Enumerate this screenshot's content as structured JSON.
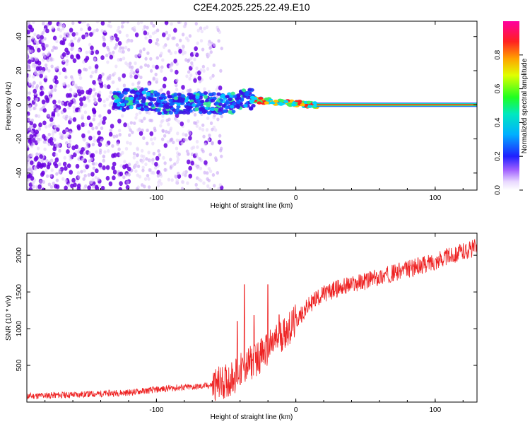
{
  "title": "C2E4.2025.225.22.49.E10",
  "colors": {
    "snr_line": "#ee2222",
    "waterfall_low": "#7700dd",
    "waterfall_mid": "#00c8ff",
    "waterfall_high": "#ff2020"
  },
  "chart_data": [
    {
      "type": "heatmap",
      "title": "C2E4.2025.225.22.49.E10",
      "xlabel": "Height of straight line (km)",
      "ylabel": "Frequency (Hz)",
      "xlim": [
        -193,
        130
      ],
      "ylim": [
        -50,
        49
      ],
      "xticks": [
        -100,
        0,
        100
      ],
      "xtick_labels": [
        "-100",
        "0",
        "100"
      ],
      "yticks": [
        -40,
        -20,
        0,
        20,
        40
      ],
      "ytick_labels": [
        "-40",
        "-20",
        "0",
        "20",
        "40"
      ],
      "grid": false,
      "colorbar": {
        "label": "Normalized spectral amplitude",
        "range": [
          0,
          1
        ],
        "ticks": [
          0.0,
          0.2,
          0.4,
          0.6,
          0.8
        ],
        "tick_labels": [
          "0.0",
          "0.2",
          "0.4",
          "0.6",
          "0.8"
        ],
        "colormap": "rainbow (white-violet-blue-cyan-green-yellow-red-magenta)"
      },
      "features": [
        {
          "region": "x from -193 to -60 km, all frequencies",
          "description": "scattered violet speckle noise (amplitude 0.0-0.2)"
        },
        {
          "region": "x from -130 to -30 km, frequency -8 to +8 Hz",
          "description": "blue/cyan band with green patches (amplitude 0.2-0.5)"
        },
        {
          "region": "x from -30 to 15 km, frequency near +3 to 0 Hz",
          "description": "narrow band with red spots (amplitude 0.8-1.0)"
        },
        {
          "region": "x from 15 to 130 km, frequency 0 Hz",
          "description": "continuous line, red center (amplitude ~1.0)"
        }
      ]
    },
    {
      "type": "line",
      "xlabel": "Height of straight line (km)",
      "ylabel": "SNR (10 * v/v)",
      "xlim": [
        -193,
        130
      ],
      "ylim": [
        0,
        2300
      ],
      "xticks": [
        -100,
        0,
        100
      ],
      "xtick_labels": [
        "-100",
        "0",
        "100"
      ],
      "yticks": [
        500,
        1000,
        1500,
        2000
      ],
      "ytick_labels": [
        "500",
        "1000",
        "1500",
        "2000"
      ],
      "grid": false,
      "series": [
        {
          "x": [
            -193,
            -180,
            -160,
            -140,
            -120,
            -110,
            -100,
            -90,
            -80,
            -70,
            -60,
            -50,
            -45,
            -40,
            -35,
            -30,
            -25,
            -20,
            -15,
            -10,
            -5,
            0,
            5,
            10,
            15,
            20,
            25,
            30,
            40,
            50,
            60,
            70,
            80,
            90,
            100,
            110,
            120,
            130
          ],
          "y": [
            80,
            90,
            100,
            115,
            130,
            150,
            170,
            190,
            200,
            210,
            230,
            280,
            340,
            420,
            500,
            560,
            640,
            720,
            820,
            920,
            1000,
            1100,
            1220,
            1330,
            1420,
            1470,
            1510,
            1550,
            1600,
            1650,
            1700,
            1760,
            1810,
            1860,
            1920,
            1990,
            2050,
            2110
          ]
        }
      ],
      "spikes": [
        {
          "x": -37,
          "y": 1600
        },
        {
          "x": -20,
          "y": 1600
        },
        {
          "x": -30,
          "y": 1180
        },
        {
          "x": -12,
          "y": 1190
        },
        {
          "x": -42,
          "y": 1100
        }
      ]
    }
  ]
}
